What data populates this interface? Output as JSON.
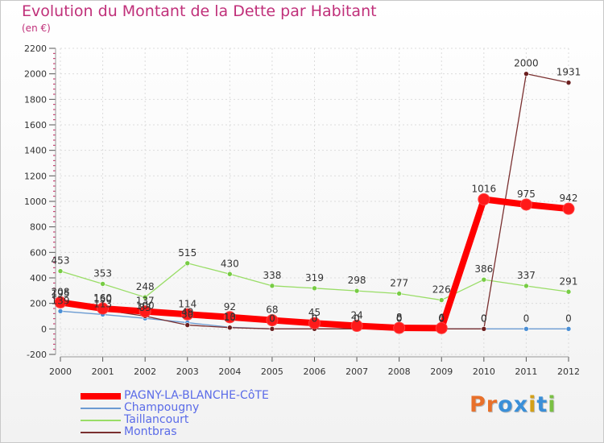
{
  "header": {
    "title": "Evolution du Montant de la Dette par Habitant",
    "subtitle": "(en €)"
  },
  "chart_data": {
    "type": "line",
    "title": "Evolution du Montant de la Dette par Habitant",
    "ylabel": "(en €)",
    "xlabel": "",
    "x": [
      "2000",
      "2001",
      "2002",
      "2003",
      "2004",
      "2005",
      "2006",
      "2007",
      "2008",
      "2009",
      "2010",
      "2011",
      "2012"
    ],
    "ylim": [
      -200,
      2200
    ],
    "yticks": [
      -200,
      0,
      200,
      400,
      600,
      800,
      1000,
      1200,
      1400,
      1600,
      1800,
      2000,
      2200
    ],
    "legend_position": "bottom-left",
    "series": [
      {
        "name": "PAGNY-LA-BLANCHE-CôTE",
        "color": "#ff0000",
        "marker_color": "#ff1a1a",
        "values": [
          208,
          160,
          137,
          114,
          92,
          68,
          45,
          24,
          8,
          6,
          1016,
          975,
          942
        ],
        "value_labels": [
          "208",
          "160",
          "137",
          "114",
          "92",
          "68",
          "45",
          "24",
          "8",
          "6",
          "1016",
          "975",
          "942"
        ]
      },
      {
        "name": "Champougny",
        "color": "#6b9bd2",
        "marker_color": "#4a8fd6",
        "values": [
          139,
          113,
          83,
          49,
          13,
          0,
          0,
          0,
          0,
          0,
          0,
          0,
          0
        ],
        "value_labels": [
          "139",
          "113",
          "83",
          "49",
          "13",
          "0",
          "0",
          "0",
          "0",
          "0",
          "0",
          "0",
          "0"
        ]
      },
      {
        "name": "Taillancourt",
        "color": "#99dd66",
        "marker_color": "#77cc44",
        "values": [
          453,
          353,
          248,
          515,
          430,
          338,
          319,
          298,
          277,
          226,
          386,
          337,
          291
        ],
        "value_labels": [
          "453",
          "353",
          "248",
          "515",
          "430",
          "338",
          "319",
          "298",
          "277",
          "226",
          "386",
          "337",
          "291"
        ]
      },
      {
        "name": "Montbras",
        "color": "#7a3030",
        "marker_color": "#6b1f1f",
        "values": [
          195,
          150,
          100,
          30,
          10,
          0,
          0,
          0,
          0,
          0,
          0,
          2000,
          1931
        ],
        "value_labels": [
          "195",
          "150",
          "100",
          "30",
          "10",
          "0",
          "0",
          "0",
          "0",
          "0",
          "0",
          "2000",
          "1931"
        ]
      }
    ]
  },
  "legend": {
    "items": [
      {
        "label": "PAGNY-LA-BLANCHE-CôTE",
        "color": "#ff0000"
      },
      {
        "label": "Champougny",
        "color": "#6b9bd2"
      },
      {
        "label": "Taillancourt",
        "color": "#99dd66"
      },
      {
        "label": "Montbras",
        "color": "#7a3030"
      }
    ]
  },
  "logo": {
    "text": "Proxiti",
    "letter_colors": [
      "#e8702a",
      "#e8702a",
      "#3a8fd8",
      "#3a8fd8",
      "#d4a017",
      "#3a8fd8",
      "#79c043"
    ]
  }
}
